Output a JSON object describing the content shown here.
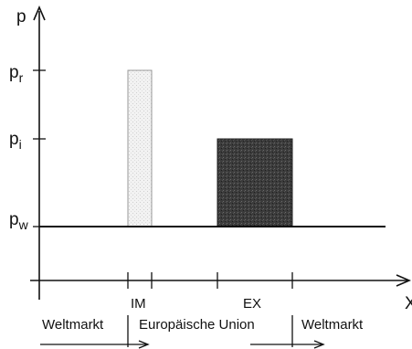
{
  "axes": {
    "y_label": "p",
    "x_label": "X"
  },
  "price_levels": [
    {
      "id": "pr",
      "base": "p",
      "sub": "r"
    },
    {
      "id": "pi",
      "base": "p",
      "sub": "i"
    },
    {
      "id": "pw",
      "base": "p",
      "sub": "w"
    }
  ],
  "blocks": [
    {
      "id": "import",
      "label": "IM",
      "fill": "#eeeeee",
      "texture": "light-dotted"
    },
    {
      "id": "export",
      "label": "EX",
      "fill": "#3b3b3b",
      "texture": "dark-speckled"
    }
  ],
  "regions": {
    "left": "Weltmarkt",
    "middle": "Europäische Union",
    "right": "Weltmarkt"
  },
  "colors": {
    "ink": "#111111",
    "import_fill": "#eeeeee",
    "export_fill": "#3b3b3b"
  }
}
